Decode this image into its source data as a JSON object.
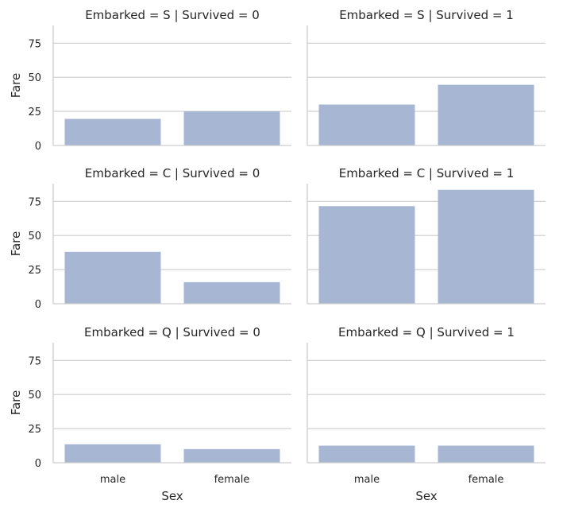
{
  "chart_data": {
    "type": "bar",
    "title_template": "Embarked = {row} | Survived = {col}",
    "row_var": "Embarked",
    "col_var": "Survived",
    "rows": [
      "S",
      "C",
      "Q"
    ],
    "cols": [
      "0",
      "1"
    ],
    "categories": [
      "male",
      "female"
    ],
    "xlabel": "Sex",
    "ylabel": "Fare",
    "ylim": [
      0,
      88
    ],
    "yticks": [
      0,
      25,
      50,
      75
    ],
    "bar_color": "#a7b6d2",
    "grid_color": "#cccccc",
    "panels": [
      {
        "title": "Embarked = S | Survived = 0",
        "row": "S",
        "col": "0",
        "values": [
          19.5,
          25.0
        ]
      },
      {
        "title": "Embarked = S | Survived = 1",
        "row": "S",
        "col": "1",
        "values": [
          30.0,
          44.5
        ]
      },
      {
        "title": "Embarked = C | Survived = 0",
        "row": "C",
        "col": "0",
        "values": [
          38.0,
          15.8
        ]
      },
      {
        "title": "Embarked = C | Survived = 1",
        "row": "C",
        "col": "1",
        "values": [
          71.5,
          83.5
        ]
      },
      {
        "title": "Embarked = Q | Survived = 0",
        "row": "Q",
        "col": "0",
        "values": [
          13.5,
          10.0
        ]
      },
      {
        "title": "Embarked = Q | Survived = 1",
        "row": "Q",
        "col": "1",
        "values": [
          12.5,
          12.5
        ]
      }
    ]
  }
}
